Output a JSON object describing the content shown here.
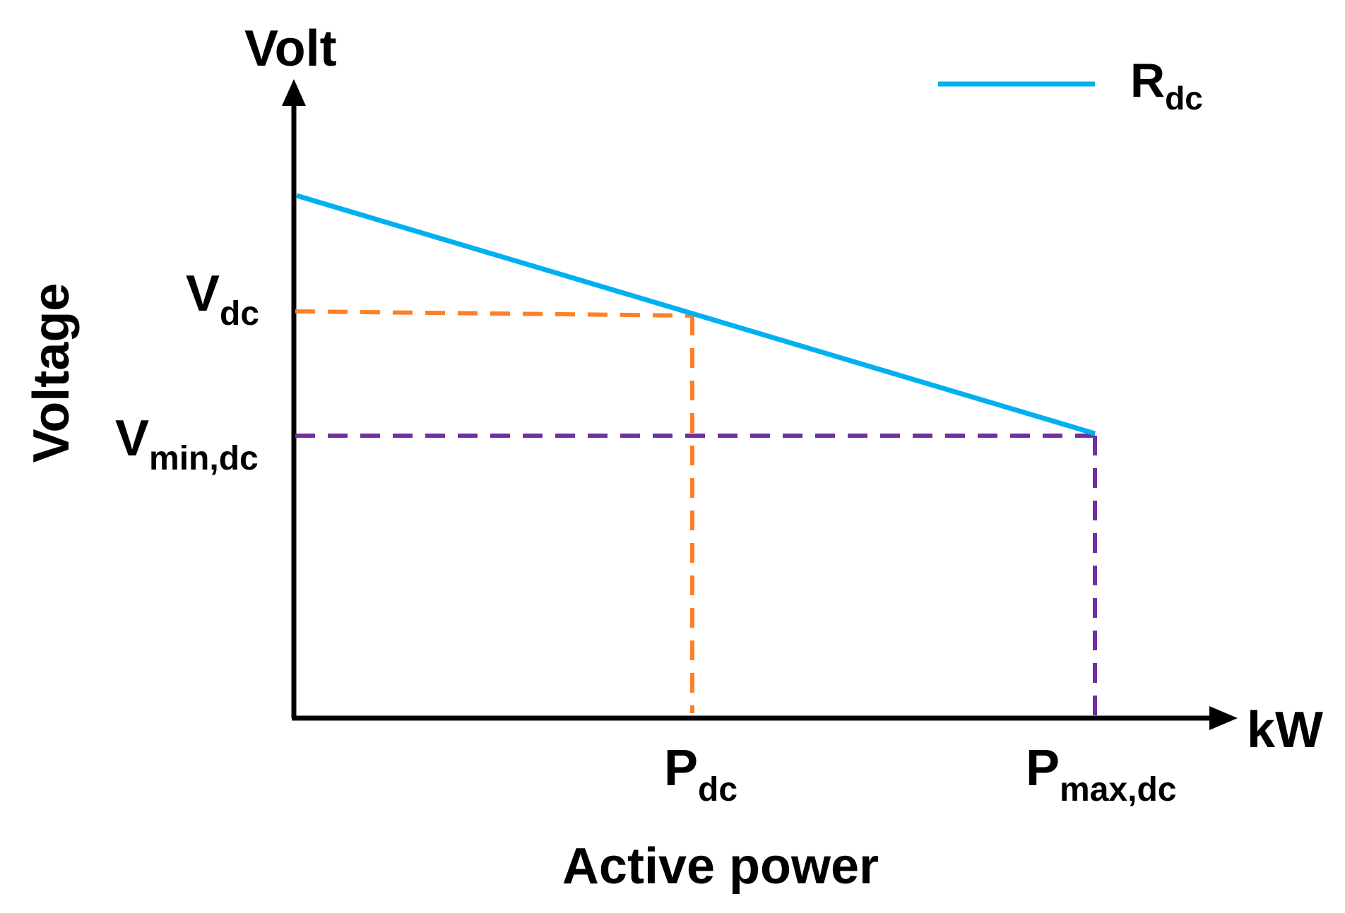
{
  "diagram": {
    "y_axis_unit": "Volt",
    "x_axis_unit": "kW",
    "y_axis_title": "Voltage",
    "x_axis_title": "Active power",
    "legend": {
      "main": "R",
      "sub": "dc"
    },
    "ticks": {
      "v_dc": {
        "main": "V",
        "sub": "dc"
      },
      "v_min_dc": {
        "main": "V",
        "sub": "min,dc"
      },
      "p_dc": {
        "main": "P",
        "sub": "dc"
      },
      "p_max_dc": {
        "main": "P",
        "sub": "max,dc"
      }
    },
    "colors": {
      "line": "#00b0f0",
      "pdc_guides": "#ff7f27",
      "pmax_guides": "#7030a0",
      "axes": "#000000"
    }
  }
}
